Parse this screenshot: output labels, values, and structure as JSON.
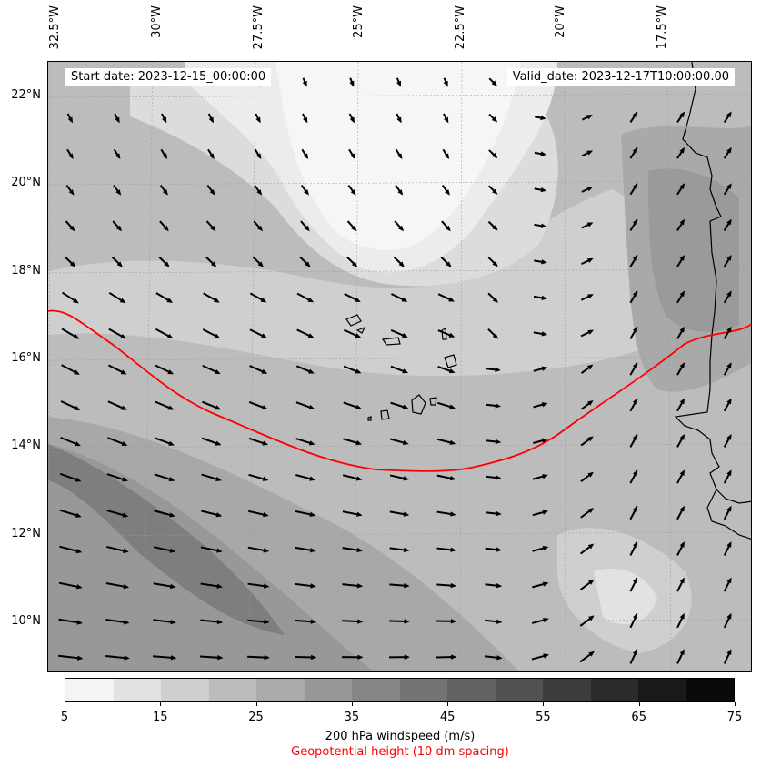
{
  "map": {
    "start_date": "Start date: 2023-12-15_00:00:00",
    "valid_date": "Valid_date: 2023-12-17T10:00:00.00",
    "lat_labels": [
      "22°N",
      "20°N",
      "18°N",
      "16°N",
      "14°N",
      "12°N",
      "10°N"
    ],
    "lon_labels": [
      "32.5°W",
      "30°W",
      "27.5°W",
      "25°W",
      "22.5°W",
      "20°W",
      "17.5°W"
    ],
    "geopotential_contour_color": "#ff0000",
    "coastline_color": "#000000",
    "vector_color": "#000000",
    "regions": [
      "Cape Verde Islands",
      "West African coast"
    ]
  },
  "colorbar": {
    "tick_labels": [
      "5",
      "15",
      "25",
      "35",
      "45",
      "55",
      "65",
      "75"
    ],
    "levels": [
      5,
      10,
      15,
      20,
      25,
      30,
      35,
      40,
      45,
      50,
      55,
      60,
      65,
      70,
      75
    ],
    "colors": [
      "#f4f4f4",
      "#e2e2e2",
      "#cfcfcf",
      "#bcbcbc",
      "#aaaaaa",
      "#989898",
      "#868686",
      "#747474",
      "#626262",
      "#525252",
      "#3d3d3d",
      "#2b2b2b",
      "#1a1a1a",
      "#0a0a0a"
    ],
    "label": "200 hPa windspeed (m/s)",
    "contour_label": "Geopotential height (10 dm spacing)",
    "contour_label_color": "#ff0000"
  }
}
